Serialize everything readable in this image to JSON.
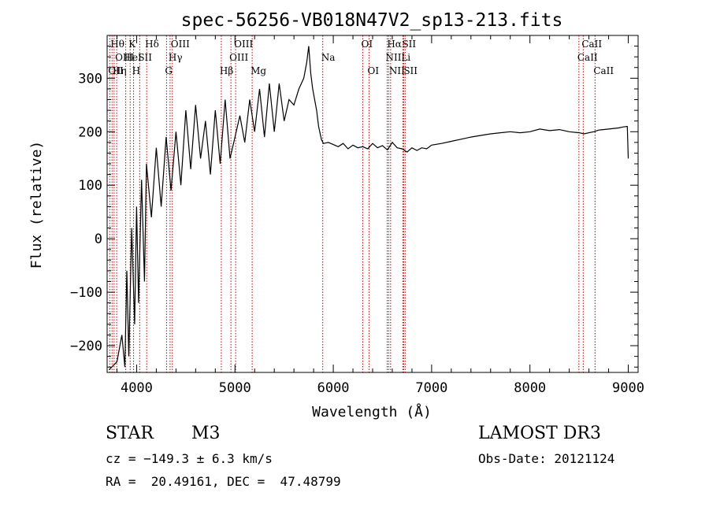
{
  "chart_data": {
    "type": "line",
    "title": "spec-56256-VB018N47V2_sp13-213.fits",
    "xlabel": "Wavelength (Å)",
    "ylabel": "Flux (relative)",
    "xlim": [
      3700,
      9100
    ],
    "ylim": [
      -250,
      380
    ],
    "xticks": [
      4000,
      5000,
      6000,
      7000,
      8000,
      9000
    ],
    "yticks": [
      -200,
      -100,
      0,
      100,
      200,
      300
    ],
    "series": [
      {
        "name": "flux",
        "color": "#000000",
        "x": [
          3720,
          3800,
          3850,
          3880,
          3900,
          3920,
          3950,
          3980,
          4000,
          4020,
          4050,
          4080,
          4100,
          4150,
          4200,
          4250,
          4300,
          4350,
          4400,
          4450,
          4500,
          4550,
          4600,
          4650,
          4700,
          4750,
          4800,
          4850,
          4900,
          4950,
          5000,
          5050,
          5100,
          5150,
          5200,
          5250,
          5300,
          5350,
          5400,
          5450,
          5500,
          5550,
          5600,
          5650,
          5700,
          5730,
          5750,
          5770,
          5790,
          5810,
          5830,
          5850,
          5880,
          5900,
          5950,
          6000,
          6050,
          6100,
          6150,
          6200,
          6250,
          6300,
          6350,
          6400,
          6450,
          6500,
          6550,
          6600,
          6650,
          6700,
          6750,
          6800,
          6850,
          6900,
          6950,
          7000,
          7100,
          7200,
          7300,
          7400,
          7500,
          7600,
          7700,
          7800,
          7900,
          8000,
          8100,
          8200,
          8300,
          8400,
          8500,
          8550,
          8600,
          8650,
          8700,
          8800,
          8900,
          8950,
          8990,
          9000
        ],
        "y": [
          -245,
          -230,
          -180,
          -240,
          -60,
          -220,
          20,
          -160,
          60,
          -120,
          110,
          -80,
          140,
          40,
          170,
          60,
          190,
          90,
          200,
          100,
          240,
          130,
          250,
          150,
          220,
          120,
          240,
          140,
          260,
          150,
          190,
          230,
          180,
          260,
          200,
          280,
          190,
          290,
          200,
          290,
          220,
          260,
          250,
          280,
          300,
          330,
          360,
          310,
          280,
          260,
          240,
          210,
          185,
          178,
          180,
          176,
          172,
          178,
          168,
          175,
          170,
          172,
          168,
          178,
          170,
          174,
          166,
          180,
          170,
          168,
          162,
          170,
          165,
          170,
          168,
          175,
          178,
          182,
          186,
          190,
          193,
          196,
          198,
          200,
          198,
          200,
          205,
          202,
          204,
          200,
          198,
          196,
          198,
          200,
          203,
          205,
          207,
          209,
          210,
          150
        ]
      }
    ],
    "lines": [
      {
        "x": 3750,
        "label": "Hθ",
        "row": 0
      },
      {
        "x": 3727,
        "label": "OII",
        "row": 2
      },
      {
        "x": 3771,
        "label": "Hη",
        "row": 2
      },
      {
        "x": 3797,
        "label": "OIII",
        "row": 1
      },
      {
        "x": 3889,
        "label": "HeI",
        "row": 1
      },
      {
        "x": 3934,
        "label": "K",
        "row": 0
      },
      {
        "x": 3969,
        "label": "H",
        "row": 2
      },
      {
        "x": 4031,
        "label": "SII",
        "row": 1
      },
      {
        "x": 4102,
        "label": "Hδ",
        "row": 0
      },
      {
        "x": 4304,
        "label": "G",
        "row": 2
      },
      {
        "x": 4340,
        "label": "Hγ",
        "row": 1
      },
      {
        "x": 4363,
        "label": "OIII",
        "row": 0
      },
      {
        "x": 4861,
        "label": "Hβ",
        "row": 2
      },
      {
        "x": 4959,
        "label": "OIII",
        "row": 1
      },
      {
        "x": 5007,
        "label": "OIII",
        "row": 0
      },
      {
        "x": 5175,
        "label": "Mg",
        "row": 2
      },
      {
        "x": 5893,
        "label": "Na",
        "row": 1
      },
      {
        "x": 6300,
        "label": "OI",
        "row": 0
      },
      {
        "x": 6364,
        "label": "OI",
        "row": 2
      },
      {
        "x": 6548,
        "label": "NII",
        "row": 1
      },
      {
        "x": 6563,
        "label": "Hα",
        "row": 0
      },
      {
        "x": 6583,
        "label": "NII",
        "row": 2
      },
      {
        "x": 6707,
        "label": "Li",
        "row": 1
      },
      {
        "x": 6716,
        "label": "SII",
        "row": 0
      },
      {
        "x": 6731,
        "label": "SII",
        "row": 2
      },
      {
        "x": 8498,
        "label": "CaII",
        "row": 1
      },
      {
        "x": 8542,
        "label": "CaII",
        "row": 0
      },
      {
        "x": 8662,
        "label": "CaII",
        "row": 2
      }
    ]
  },
  "info": {
    "object_class": "STAR",
    "subclass": "M3",
    "survey": "LAMOST DR3",
    "cz": "cz = −149.3 ± 6.3 km/s",
    "obs_date": "Obs-Date: 20121124",
    "coords": "RA =  20.49161, DEC =  47.48799"
  }
}
